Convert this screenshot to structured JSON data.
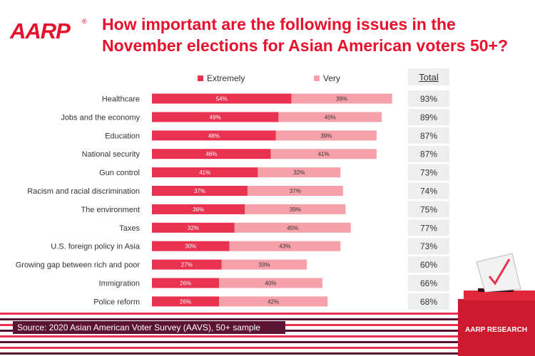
{
  "brand": {
    "logo": "AARP",
    "registered": "®"
  },
  "title_line1": "How important are the following issues in the",
  "title_line2": "November elections for Asian American voters 50+?",
  "legend": {
    "extremely": "Extremely",
    "very": "Very"
  },
  "total_header": "Total",
  "source": "Source: 2020 Asian American Voter Survey (AAVS), 50+ sample",
  "footer_badge": "AARP RESEARCH",
  "colors": {
    "extremely": "#e8324f",
    "very": "#f6a1a9",
    "title": "#e8112d",
    "stripe": "#5a1330"
  },
  "chart_data": {
    "type": "bar",
    "orientation": "horizontal",
    "stacked": true,
    "title": "How important are the following issues in the November elections for Asian American voters 50+?",
    "categories": [
      "Healthcare",
      "Jobs and the economy",
      "Education",
      "National security",
      "Gun control",
      "Racism and racial discrimination",
      "The environment",
      "Taxes",
      "U.S. foreign policy in Asia",
      "Growing gap between rich and poor",
      "Immigration",
      "Police reform"
    ],
    "series": [
      {
        "name": "Extremely",
        "values": [
          54,
          49,
          48,
          46,
          41,
          37,
          36,
          32,
          30,
          27,
          26,
          26
        ]
      },
      {
        "name": "Very",
        "values": [
          39,
          40,
          39,
          41,
          32,
          37,
          39,
          45,
          43,
          33,
          40,
          42
        ]
      }
    ],
    "totals": [
      93,
      89,
      87,
      87,
      73,
      74,
      75,
      77,
      73,
      60,
      66,
      68
    ],
    "value_suffix": "%",
    "legend_position": "top"
  }
}
